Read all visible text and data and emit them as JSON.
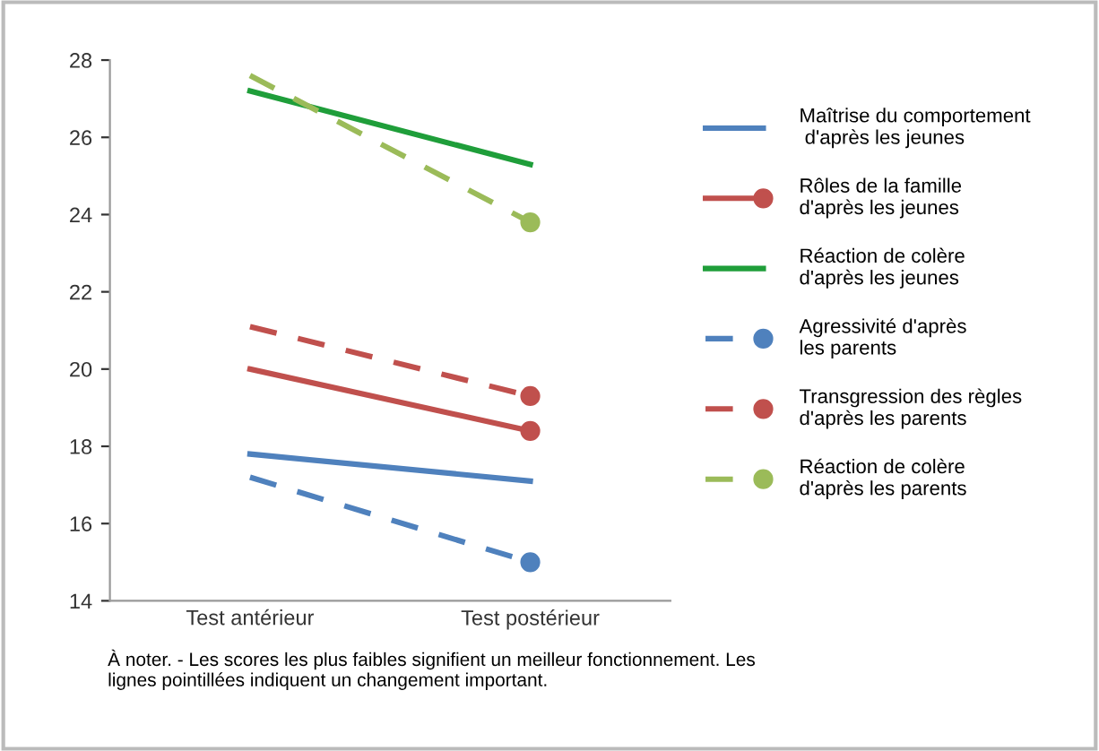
{
  "chart_data": {
    "type": "line",
    "categories": [
      "Test antérieur",
      "Test postérieur"
    ],
    "series": [
      {
        "name": "Maîtrise du comportement\n d'après les jeunes",
        "color": "#4f81bd",
        "values": [
          17.8,
          17.1
        ],
        "line_style": "solid",
        "marker": "none"
      },
      {
        "name": "Rôles de la famille\nd'après les jeunes",
        "color": "#c0504d",
        "values": [
          20.0,
          18.4
        ],
        "line_style": "solid",
        "marker": "circle"
      },
      {
        "name": "Réaction de colère\nd'après les jeunes",
        "color": "#1f9e3a",
        "values": [
          27.2,
          25.3
        ],
        "line_style": "solid",
        "marker": "none"
      },
      {
        "name": "Agressivité d'après\nles parents",
        "color": "#4f81bd",
        "values": [
          17.2,
          15.0
        ],
        "line_style": "dashed",
        "marker": "circle"
      },
      {
        "name": "Transgression des règles\nd'après les parents",
        "color": "#c0504d",
        "values": [
          21.1,
          19.3
        ],
        "line_style": "dashed",
        "marker": "circle"
      },
      {
        "name": "Réaction de colère\nd'après les parents",
        "color": "#9bbb59",
        "values": [
          27.6,
          23.8
        ],
        "line_style": "dashed",
        "marker": "circle"
      }
    ],
    "ylim": [
      14,
      28
    ],
    "yticks": [
      14,
      16,
      18,
      20,
      22,
      24,
      26,
      28
    ],
    "grid": false,
    "legend": "right",
    "annotations": [
      "À noter. - Les scores les plus faibles signifient un meilleur fonctionnement. Les\nlignes pointillées indiquent un changement important."
    ]
  }
}
